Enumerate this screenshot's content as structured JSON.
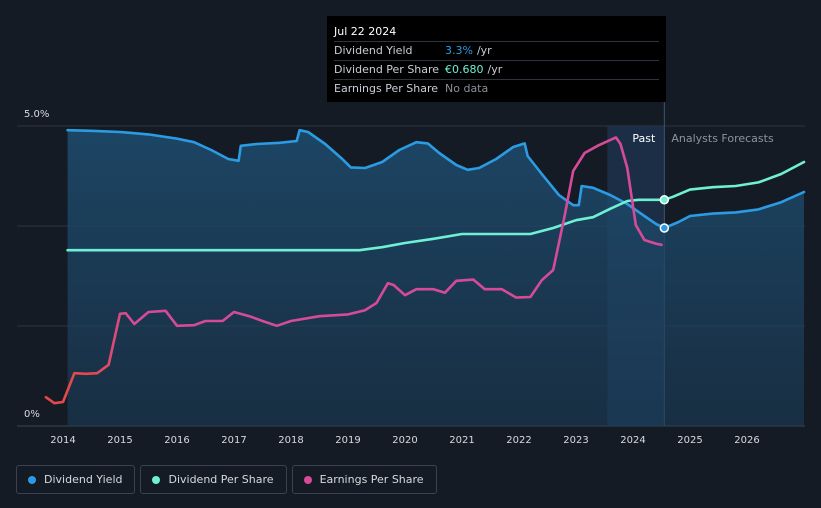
{
  "chart_data": {
    "type": "line",
    "x_range": [
      2013.5,
      2027.0
    ],
    "y_range_pct": [
      0,
      5.0
    ],
    "y_ticks": [
      {
        "value": 5.0,
        "label": "5.0%"
      },
      {
        "value": 0,
        "label": "0%"
      }
    ],
    "x_ticks": [
      "2014",
      "2015",
      "2016",
      "2017",
      "2018",
      "2019",
      "2020",
      "2021",
      "2022",
      "2023",
      "2024",
      "2025",
      "2026"
    ],
    "past_label": "Past",
    "forecast_label": "Analysts Forecasts",
    "past_band_start": 2023.55,
    "today": 2024.55,
    "series": [
      {
        "name": "Dividend Yield",
        "color": "#2b9be3",
        "fill": true,
        "points": [
          [
            2014.08,
            4.93
          ],
          [
            2014.5,
            4.92
          ],
          [
            2015.0,
            4.9
          ],
          [
            2015.5,
            4.86
          ],
          [
            2016.0,
            4.79
          ],
          [
            2016.3,
            4.73
          ],
          [
            2016.6,
            4.6
          ],
          [
            2016.9,
            4.45
          ],
          [
            2017.08,
            4.42
          ],
          [
            2017.12,
            4.67
          ],
          [
            2017.4,
            4.7
          ],
          [
            2017.8,
            4.72
          ],
          [
            2018.1,
            4.75
          ],
          [
            2018.15,
            4.93
          ],
          [
            2018.3,
            4.9
          ],
          [
            2018.6,
            4.7
          ],
          [
            2018.9,
            4.45
          ],
          [
            2019.05,
            4.31
          ],
          [
            2019.3,
            4.3
          ],
          [
            2019.6,
            4.4
          ],
          [
            2019.9,
            4.6
          ],
          [
            2020.2,
            4.73
          ],
          [
            2020.4,
            4.71
          ],
          [
            2020.6,
            4.55
          ],
          [
            2020.9,
            4.35
          ],
          [
            2021.1,
            4.27
          ],
          [
            2021.3,
            4.3
          ],
          [
            2021.6,
            4.45
          ],
          [
            2021.9,
            4.65
          ],
          [
            2022.1,
            4.71
          ],
          [
            2022.15,
            4.5
          ],
          [
            2022.4,
            4.2
          ],
          [
            2022.7,
            3.85
          ],
          [
            2022.95,
            3.68
          ],
          [
            2023.05,
            3.68
          ],
          [
            2023.1,
            4.0
          ],
          [
            2023.3,
            3.97
          ],
          [
            2023.6,
            3.85
          ],
          [
            2023.9,
            3.7
          ],
          [
            2024.2,
            3.5
          ],
          [
            2024.4,
            3.37
          ],
          [
            2024.55,
            3.3
          ],
          [
            2024.8,
            3.4
          ],
          [
            2025.0,
            3.5
          ],
          [
            2025.4,
            3.54
          ],
          [
            2025.8,
            3.56
          ],
          [
            2026.2,
            3.61
          ],
          [
            2026.6,
            3.73
          ],
          [
            2027.0,
            3.9
          ]
        ]
      },
      {
        "name": "Dividend Per Share",
        "color": "#6ff0d5",
        "fill": false,
        "points": [
          [
            2014.08,
            2.93
          ],
          [
            2015.0,
            2.93
          ],
          [
            2016.0,
            2.93
          ],
          [
            2017.0,
            2.93
          ],
          [
            2018.0,
            2.93
          ],
          [
            2019.2,
            2.93
          ],
          [
            2019.6,
            2.98
          ],
          [
            2020.0,
            3.05
          ],
          [
            2020.5,
            3.12
          ],
          [
            2021.0,
            3.2
          ],
          [
            2021.5,
            3.2
          ],
          [
            2022.0,
            3.2
          ],
          [
            2022.2,
            3.2
          ],
          [
            2022.6,
            3.3
          ],
          [
            2023.0,
            3.43
          ],
          [
            2023.3,
            3.48
          ],
          [
            2023.6,
            3.62
          ],
          [
            2023.9,
            3.75
          ],
          [
            2024.1,
            3.77
          ],
          [
            2024.55,
            3.77
          ],
          [
            2024.7,
            3.82
          ],
          [
            2025.0,
            3.94
          ],
          [
            2025.4,
            3.98
          ],
          [
            2025.8,
            4.0
          ],
          [
            2026.2,
            4.06
          ],
          [
            2026.6,
            4.2
          ],
          [
            2027.0,
            4.4
          ]
        ]
      },
      {
        "name": "Earnings Per Share",
        "color": "#d64b97",
        "color_low": "#e5484d",
        "fill": false,
        "points": [
          [
            2013.7,
            0.48
          ],
          [
            2013.85,
            0.38
          ],
          [
            2014.0,
            0.4
          ],
          [
            2014.2,
            0.88
          ],
          [
            2014.4,
            0.87
          ],
          [
            2014.6,
            0.88
          ],
          [
            2014.8,
            1.02
          ],
          [
            2015.0,
            1.87
          ],
          [
            2015.1,
            1.88
          ],
          [
            2015.25,
            1.7
          ],
          [
            2015.5,
            1.9
          ],
          [
            2015.8,
            1.92
          ],
          [
            2016.0,
            1.67
          ],
          [
            2016.3,
            1.68
          ],
          [
            2016.5,
            1.75
          ],
          [
            2016.8,
            1.75
          ],
          [
            2017.0,
            1.9
          ],
          [
            2017.3,
            1.82
          ],
          [
            2017.5,
            1.75
          ],
          [
            2017.75,
            1.67
          ],
          [
            2018.0,
            1.75
          ],
          [
            2018.5,
            1.83
          ],
          [
            2019.0,
            1.86
          ],
          [
            2019.3,
            1.93
          ],
          [
            2019.5,
            2.05
          ],
          [
            2019.7,
            2.38
          ],
          [
            2019.8,
            2.35
          ],
          [
            2020.0,
            2.18
          ],
          [
            2020.2,
            2.28
          ],
          [
            2020.5,
            2.28
          ],
          [
            2020.7,
            2.22
          ],
          [
            2020.9,
            2.42
          ],
          [
            2021.2,
            2.44
          ],
          [
            2021.4,
            2.28
          ],
          [
            2021.7,
            2.28
          ],
          [
            2021.95,
            2.14
          ],
          [
            2022.2,
            2.15
          ],
          [
            2022.4,
            2.43
          ],
          [
            2022.6,
            2.6
          ],
          [
            2022.8,
            3.5
          ],
          [
            2022.95,
            4.25
          ],
          [
            2023.15,
            4.55
          ],
          [
            2023.4,
            4.68
          ],
          [
            2023.7,
            4.81
          ],
          [
            2023.78,
            4.7
          ],
          [
            2023.9,
            4.3
          ],
          [
            2024.05,
            3.35
          ],
          [
            2024.2,
            3.1
          ],
          [
            2024.4,
            3.04
          ],
          [
            2024.5,
            3.02
          ]
        ]
      }
    ],
    "markers": [
      {
        "series": "Dividend Per Share",
        "x": 2024.55,
        "y": 3.77
      },
      {
        "series": "Dividend Yield",
        "x": 2024.55,
        "y": 3.3
      }
    ]
  },
  "tooltip": {
    "date": "Jul 22 2024",
    "rows": [
      {
        "label": "Dividend Yield",
        "value": "3.3%",
        "unit": "/yr"
      },
      {
        "label": "Dividend Per Share",
        "value": "€0.680",
        "unit": "/yr"
      },
      {
        "label": "Earnings Per Share",
        "value": "No data",
        "unit": ""
      }
    ]
  },
  "legend": [
    {
      "label": "Dividend Yield",
      "color": "#2b9be3"
    },
    {
      "label": "Dividend Per Share",
      "color": "#6ff0d5"
    },
    {
      "label": "Earnings Per Share",
      "color": "#d64b97"
    }
  ]
}
